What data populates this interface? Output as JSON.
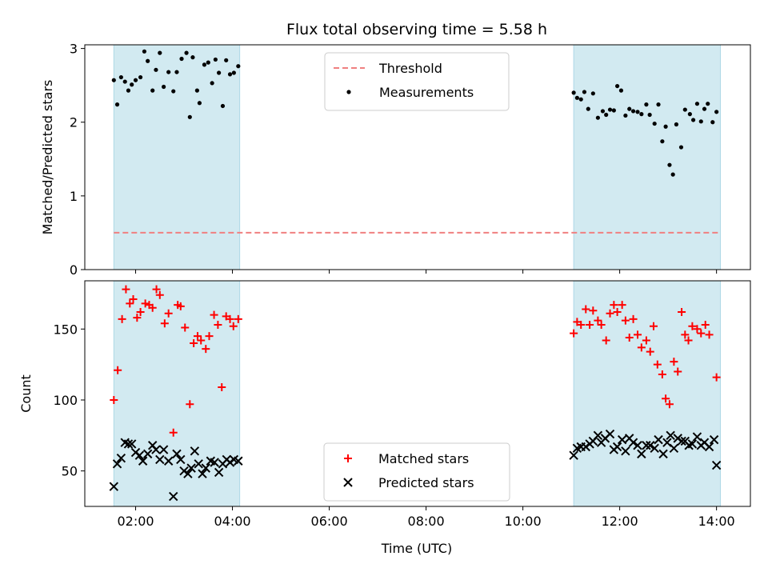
{
  "chart_data": {
    "title": "Flux total observing time = 5.58 h",
    "xlabel": "Time (UTC)",
    "xlim_hours": [
      0.95,
      14.7
    ],
    "xticks": [
      {
        "h": 2,
        "label": "02:00"
      },
      {
        "h": 4,
        "label": "04:00"
      },
      {
        "h": 6,
        "label": "06:00"
      },
      {
        "h": 8,
        "label": "08:00"
      },
      {
        "h": 10,
        "label": "10:00"
      },
      {
        "h": 12,
        "label": "12:00"
      },
      {
        "h": 14,
        "label": "14:00"
      }
    ],
    "shaded_spans_hours": [
      [
        1.55,
        4.15
      ],
      [
        11.05,
        14.08
      ]
    ],
    "shade_color": "#add8e6",
    "panels": [
      {
        "type": "scatter",
        "ylabel": "Matched/Predicted stars",
        "ylim": [
          0,
          3.05
        ],
        "yticks": [
          {
            "v": 0,
            "label": "0"
          },
          {
            "v": 1,
            "label": "1"
          },
          {
            "v": 2,
            "label": "2"
          },
          {
            "v": 3,
            "label": "3"
          }
        ],
        "threshold": {
          "name": "Threshold",
          "value": 0.5,
          "color": "#f08080"
        },
        "series": [
          {
            "name": "Measurements",
            "marker": "dot",
            "color": "#000000",
            "points": [
              [
                1.55,
                2.57
              ],
              [
                1.62,
                2.24
              ],
              [
                1.7,
                2.61
              ],
              [
                1.78,
                2.55
              ],
              [
                1.85,
                2.43
              ],
              [
                1.92,
                2.51
              ],
              [
                2.0,
                2.57
              ],
              [
                2.1,
                2.61
              ],
              [
                2.18,
                2.96
              ],
              [
                2.25,
                2.83
              ],
              [
                2.35,
                2.43
              ],
              [
                2.42,
                2.71
              ],
              [
                2.5,
                2.94
              ],
              [
                2.58,
                2.48
              ],
              [
                2.68,
                2.68
              ],
              [
                2.78,
                2.42
              ],
              [
                2.85,
                2.68
              ],
              [
                2.95,
                2.86
              ],
              [
                3.05,
                2.94
              ],
              [
                3.12,
                2.07
              ],
              [
                3.18,
                2.88
              ],
              [
                3.27,
                2.43
              ],
              [
                3.32,
                2.26
              ],
              [
                3.42,
                2.78
              ],
              [
                3.5,
                2.81
              ],
              [
                3.58,
                2.53
              ],
              [
                3.65,
                2.85
              ],
              [
                3.72,
                2.67
              ],
              [
                3.8,
                2.22
              ],
              [
                3.87,
                2.84
              ],
              [
                3.95,
                2.65
              ],
              [
                4.03,
                2.67
              ],
              [
                4.12,
                2.76
              ],
              [
                11.05,
                2.4
              ],
              [
                11.12,
                2.33
              ],
              [
                11.2,
                2.31
              ],
              [
                11.27,
                2.41
              ],
              [
                11.35,
                2.18
              ],
              [
                11.45,
                2.39
              ],
              [
                11.55,
                2.06
              ],
              [
                11.65,
                2.15
              ],
              [
                11.72,
                2.1
              ],
              [
                11.8,
                2.17
              ],
              [
                11.88,
                2.16
              ],
              [
                11.95,
                2.49
              ],
              [
                12.03,
                2.43
              ],
              [
                12.12,
                2.09
              ],
              [
                12.2,
                2.18
              ],
              [
                12.28,
                2.15
              ],
              [
                12.37,
                2.14
              ],
              [
                12.45,
                2.11
              ],
              [
                12.55,
                2.24
              ],
              [
                12.62,
                2.1
              ],
              [
                12.72,
                1.98
              ],
              [
                12.8,
                2.24
              ],
              [
                12.88,
                1.74
              ],
              [
                12.95,
                1.94
              ],
              [
                13.03,
                1.42
              ],
              [
                13.1,
                1.29
              ],
              [
                13.17,
                1.97
              ],
              [
                13.27,
                1.66
              ],
              [
                13.35,
                2.17
              ],
              [
                13.45,
                2.11
              ],
              [
                13.52,
                2.03
              ],
              [
                13.6,
                2.25
              ],
              [
                13.68,
                2.01
              ],
              [
                13.75,
                2.18
              ],
              [
                13.82,
                2.25
              ],
              [
                13.92,
                2.0
              ],
              [
                14.0,
                2.14
              ]
            ]
          }
        ],
        "legend_order": [
          "Threshold",
          "Measurements"
        ],
        "legend_position": "upper center"
      },
      {
        "type": "scatter",
        "ylabel": "Count",
        "ylim": [
          25,
          184
        ],
        "yticks": [
          {
            "v": 50,
            "label": "50"
          },
          {
            "v": 100,
            "label": "100"
          },
          {
            "v": 150,
            "label": "150"
          }
        ],
        "series": [
          {
            "name": "Matched stars",
            "marker": "plus",
            "color": "#ff0000",
            "points": [
              [
                1.55,
                100
              ],
              [
                1.63,
                121
              ],
              [
                1.72,
                157
              ],
              [
                1.8,
                178
              ],
              [
                1.88,
                168
              ],
              [
                1.95,
                171
              ],
              [
                2.03,
                158
              ],
              [
                2.1,
                162
              ],
              [
                2.2,
                168
              ],
              [
                2.28,
                167
              ],
              [
                2.35,
                165
              ],
              [
                2.43,
                178
              ],
              [
                2.5,
                174
              ],
              [
                2.6,
                154
              ],
              [
                2.68,
                161
              ],
              [
                2.78,
                77
              ],
              [
                2.87,
                167
              ],
              [
                2.93,
                166
              ],
              [
                3.02,
                151
              ],
              [
                3.12,
                97
              ],
              [
                3.2,
                140
              ],
              [
                3.28,
                145
              ],
              [
                3.35,
                142
              ],
              [
                3.45,
                136
              ],
              [
                3.52,
                145
              ],
              [
                3.62,
                160
              ],
              [
                3.7,
                153
              ],
              [
                3.78,
                109
              ],
              [
                3.87,
                159
              ],
              [
                3.95,
                157
              ],
              [
                4.02,
                152
              ],
              [
                4.12,
                157
              ],
              [
                11.05,
                147
              ],
              [
                11.12,
                155
              ],
              [
                11.2,
                153
              ],
              [
                11.3,
                164
              ],
              [
                11.38,
                153
              ],
              [
                11.45,
                163
              ],
              [
                11.55,
                156
              ],
              [
                11.62,
                153
              ],
              [
                11.72,
                142
              ],
              [
                11.8,
                161
              ],
              [
                11.88,
                167
              ],
              [
                11.95,
                162
              ],
              [
                12.05,
                167
              ],
              [
                12.12,
                156
              ],
              [
                12.2,
                144
              ],
              [
                12.28,
                157
              ],
              [
                12.37,
                146
              ],
              [
                12.45,
                137
              ],
              [
                12.55,
                142
              ],
              [
                12.63,
                134
              ],
              [
                12.7,
                152
              ],
              [
                12.78,
                125
              ],
              [
                12.88,
                118
              ],
              [
                12.95,
                101
              ],
              [
                13.03,
                97
              ],
              [
                13.12,
                127
              ],
              [
                13.2,
                120
              ],
              [
                13.28,
                162
              ],
              [
                13.35,
                146
              ],
              [
                13.42,
                142
              ],
              [
                13.5,
                152
              ],
              [
                13.6,
                150
              ],
              [
                13.68,
                147
              ],
              [
                13.77,
                153
              ],
              [
                13.85,
                146
              ],
              [
                14.0,
                116
              ]
            ]
          },
          {
            "name": "Predicted stars",
            "marker": "x",
            "color": "#000000",
            "points": [
              [
                1.55,
                39
              ],
              [
                1.62,
                55
              ],
              [
                1.7,
                59
              ],
              [
                1.78,
                70
              ],
              [
                1.85,
                69
              ],
              [
                1.92,
                69
              ],
              [
                2.0,
                63
              ],
              [
                2.08,
                61
              ],
              [
                2.15,
                57
              ],
              [
                2.25,
                62
              ],
              [
                2.35,
                68
              ],
              [
                2.42,
                65
              ],
              [
                2.5,
                58
              ],
              [
                2.58,
                65
              ],
              [
                2.68,
                57
              ],
              [
                2.78,
                32
              ],
              [
                2.85,
                62
              ],
              [
                2.93,
                58
              ],
              [
                3.0,
                50
              ],
              [
                3.08,
                48
              ],
              [
                3.15,
                52
              ],
              [
                3.22,
                64
              ],
              [
                3.3,
                55
              ],
              [
                3.38,
                48
              ],
              [
                3.45,
                52
              ],
              [
                3.55,
                57
              ],
              [
                3.63,
                56
              ],
              [
                3.72,
                49
              ],
              [
                3.8,
                55
              ],
              [
                3.88,
                58
              ],
              [
                3.95,
                56
              ],
              [
                4.03,
                58
              ],
              [
                4.12,
                57
              ],
              [
                11.05,
                61
              ],
              [
                11.12,
                66
              ],
              [
                11.2,
                67
              ],
              [
                11.3,
                67
              ],
              [
                11.38,
                69
              ],
              [
                11.45,
                71
              ],
              [
                11.55,
                75
              ],
              [
                11.62,
                70
              ],
              [
                11.7,
                73
              ],
              [
                11.8,
                76
              ],
              [
                11.88,
                65
              ],
              [
                11.95,
                67
              ],
              [
                12.05,
                72
              ],
              [
                12.12,
                64
              ],
              [
                12.2,
                73
              ],
              [
                12.28,
                70
              ],
              [
                12.37,
                68
              ],
              [
                12.45,
                62
              ],
              [
                12.55,
                68
              ],
              [
                12.63,
                68
              ],
              [
                12.72,
                66
              ],
              [
                12.8,
                72
              ],
              [
                12.9,
                62
              ],
              [
                12.98,
                70
              ],
              [
                13.05,
                75
              ],
              [
                13.12,
                66
              ],
              [
                13.2,
                73
              ],
              [
                13.28,
                71
              ],
              [
                13.35,
                71
              ],
              [
                13.43,
                68
              ],
              [
                13.5,
                69
              ],
              [
                13.6,
                74
              ],
              [
                13.68,
                68
              ],
              [
                13.75,
                70
              ],
              [
                13.85,
                67
              ],
              [
                13.95,
                72
              ],
              [
                14.0,
                54
              ]
            ]
          }
        ],
        "legend_order": [
          "Matched stars",
          "Predicted stars"
        ],
        "legend_position": "lower center"
      }
    ]
  }
}
